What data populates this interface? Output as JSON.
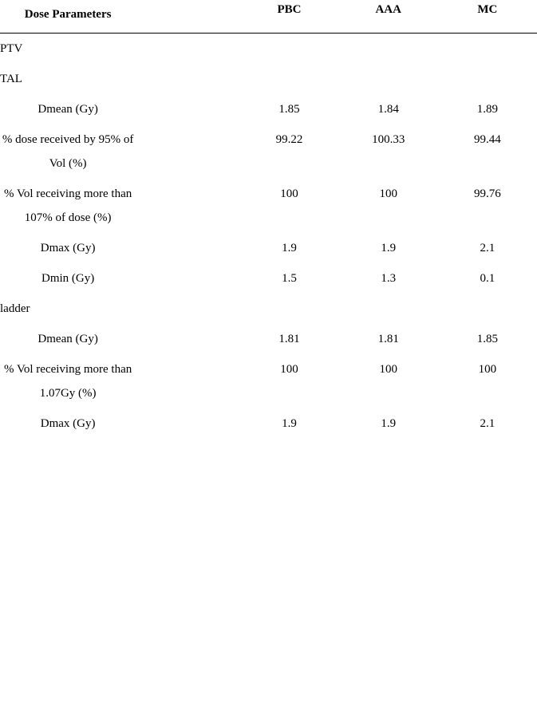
{
  "header": {
    "param": "Dose Parameters",
    "pbc": "PBC",
    "aaa": "AAA",
    "mc": "MC"
  },
  "sections": {
    "ptv": "PTV",
    "tal": "TAL",
    "bladder": "ladder"
  },
  "tal": {
    "dmean": {
      "label": "Dmean (Gy)",
      "pbc": "1.85",
      "aaa": "1.84",
      "mc": "1.89"
    },
    "pct95": {
      "label": "% dose received by 95% of Vol (%)",
      "pbc": "99.22",
      "aaa": "100.33",
      "mc": "99.44"
    },
    "pct107": {
      "label": "% Vol receiving more than 107% of dose (%)",
      "pbc": "100",
      "aaa": "100",
      "mc": "99.76"
    },
    "dmax": {
      "label": "Dmax (Gy)",
      "pbc": "1.9",
      "aaa": "1.9",
      "mc": "2.1"
    },
    "dmin": {
      "label": "Dmin (Gy)",
      "pbc": "1.5",
      "aaa": "1.3",
      "mc": "0.1"
    }
  },
  "bladder": {
    "dmean": {
      "label": "Dmean (Gy)",
      "pbc": "1.81",
      "aaa": "1.81",
      "mc": "1.85"
    },
    "pct107": {
      "label": "% Vol receiving more than 1.07Gy (%)",
      "pbc": "100",
      "aaa": "100",
      "mc": "100"
    },
    "dmax": {
      "label": "Dmax (Gy)",
      "pbc": "1.9",
      "aaa": "1.9",
      "mc": "2.1"
    }
  }
}
